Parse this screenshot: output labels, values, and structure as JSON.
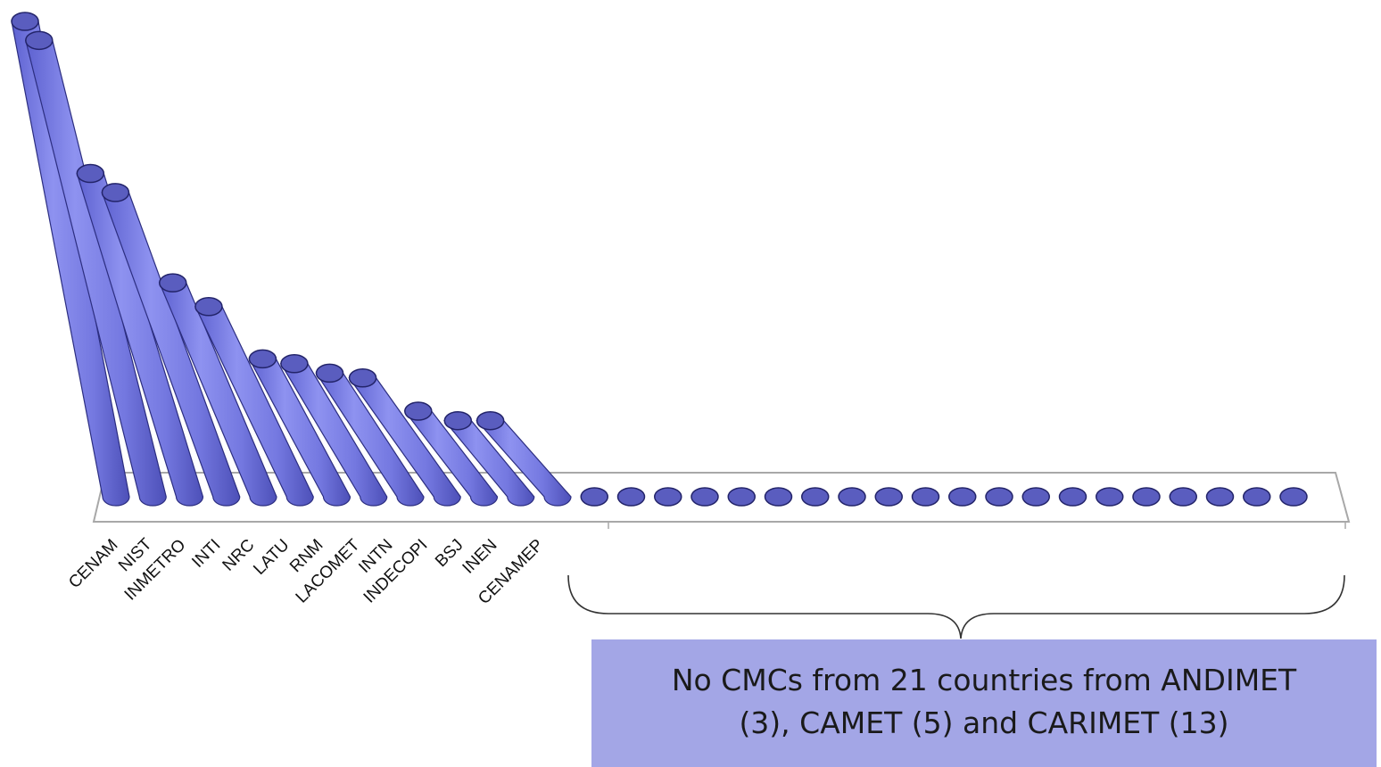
{
  "chart_data": {
    "type": "bar",
    "style": "3d-cylinder",
    "categories": [
      "CENAM",
      "NIST",
      "INMETRO",
      "INTI",
      "NRC",
      "LATU",
      "RNM",
      "LACOMET",
      "INTN",
      "INDECOPI",
      "BSJ",
      "INEN",
      "CENAMEP",
      "",
      "",
      "",
      "",
      "",
      "",
      "",
      "",
      "",
      "",
      "",
      "",
      "",
      "",
      "",
      "",
      "",
      "",
      "",
      ""
    ],
    "values": [
      100,
      96,
      68,
      64,
      45,
      40,
      29,
      28,
      26,
      25,
      18,
      16,
      16,
      0,
      0,
      0,
      0,
      0,
      0,
      0,
      0,
      0,
      0,
      0,
      0,
      0,
      0,
      0,
      0,
      0,
      0,
      0,
      0
    ],
    "ylim": [
      0,
      100
    ],
    "grid": false,
    "legend": "none",
    "colors": {
      "bar": "#7b7fe6",
      "bar_top": "#5a5dbf",
      "floor": "#a8a8a8"
    }
  },
  "callout": {
    "line1": "No CMCs from 21 countries from ANDIMET",
    "line2": "(3), CAMET (5) and CARIMET (13)"
  }
}
